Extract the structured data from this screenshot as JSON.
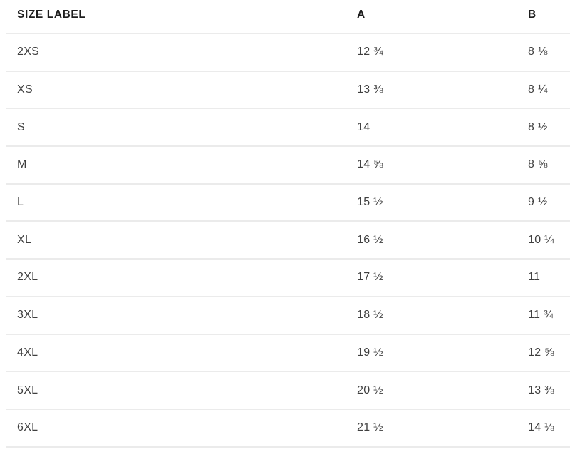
{
  "accent_colors": {
    "header_text": "#1e1e1e",
    "body_text": "#3f3f3f",
    "divider": "#ebebeb",
    "background": "#ffffff"
  },
  "table": {
    "columns": {
      "size": "SIZE LABEL",
      "a": "A",
      "b": "B"
    },
    "rows": [
      {
        "size": "2XS",
        "a": "12 ¾",
        "b": "8 ⅛"
      },
      {
        "size": "XS",
        "a": "13 ⅜",
        "b": "8 ¼"
      },
      {
        "size": "S",
        "a": "14",
        "b": "8 ½"
      },
      {
        "size": "M",
        "a": "14 ⅝",
        "b": "8 ⅝"
      },
      {
        "size": "L",
        "a": "15 ½",
        "b": "9 ½"
      },
      {
        "size": "XL",
        "a": "16 ½",
        "b": "10 ¼"
      },
      {
        "size": "2XL",
        "a": "17 ½",
        "b": "11"
      },
      {
        "size": "3XL",
        "a": "18 ½",
        "b": "11 ¾"
      },
      {
        "size": "4XL",
        "a": "19 ½",
        "b": "12 ⅝"
      },
      {
        "size": "5XL",
        "a": "20 ½",
        "b": "13 ⅜"
      },
      {
        "size": "6XL",
        "a": "21 ½",
        "b": "14 ⅛"
      }
    ]
  }
}
